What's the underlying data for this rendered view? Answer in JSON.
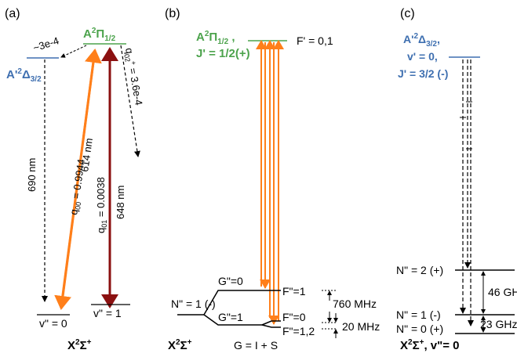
{
  "panels": {
    "a": {
      "label": "(a)",
      "upper_state_main": "A",
      "upper_state_sup": "2",
      "upper_state_mid": "Π",
      "upper_state_sub": "1/2",
      "delta_state_main": "A'",
      "delta_state_sup": "2",
      "delta_state_mid": "Δ",
      "delta_state_sub": "3/2",
      "branch_delta": "~3e-4",
      "q02_label": "q02+ = 3.6e-4",
      "wavelength_690": "690 nm",
      "q00_label": "q00 = 0.9944",
      "wavelength_614": "614 nm",
      "q01_label": "q01 = 0.0038",
      "wavelength_648": "648 nm",
      "v0_label": "v\" = 0",
      "v1_label": "v\" = 1",
      "ground_main": "X",
      "ground_sup1": "2",
      "ground_mid": "Σ",
      "ground_sup2": "+"
    },
    "b": {
      "label": "(b)",
      "upper_main": "A",
      "upper_sup": "2",
      "upper_mid": "Π",
      "upper_sub": "1/2",
      "upper_suffix": " ,",
      "j_label": "J' = 1/2(+)",
      "fprime_label": "F' = 0,1",
      "n_label": "N\" = 1 (-)",
      "g0_label": "G\"=0",
      "g1_label": "G\"=1",
      "f1_label": "F\"=1",
      "f0_label": "F\"=0",
      "f12_label": "F\"=1,2",
      "split_760": "760 MHz",
      "split_20": "20 MHz",
      "ground_main": "X",
      "ground_sup1": "2",
      "ground_mid": "Σ",
      "ground_sup2": "+",
      "g_eq": "G = I + S"
    },
    "c": {
      "label": "(c)",
      "upper_main": "A'",
      "upper_sup": "2",
      "upper_mid": "Δ",
      "upper_sub": "3/2",
      "upper_suffix": ",",
      "v_label": "v' = 0,",
      "j_label": "J' = 3/2 (-)",
      "n2_label": "N\" = 2 (+)",
      "n1_label": "N\" = 1 (-)",
      "n0_label": "N\" = 0 (+)",
      "split_46": "46 GHz",
      "split_23": "23 GHz",
      "ground_main": "X",
      "ground_sup1": "2",
      "ground_mid": "Σ",
      "ground_sup2": "+",
      "ground_suffix": ", v\"= 0"
    }
  },
  "colors": {
    "green": "#4ca34c",
    "blue": "#3e6fb0",
    "orange": "#ff7f1a",
    "darkred": "#8b1010",
    "black": "#000000"
  }
}
